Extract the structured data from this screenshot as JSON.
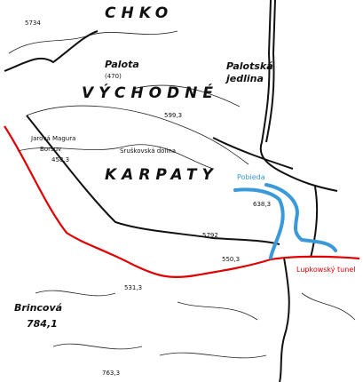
{
  "map": {
    "labels": {
      "chko": "CHKO",
      "vychodne": "VÝCHODNÉ",
      "karpaty": "KARPATY",
      "palota": "Palota",
      "palota_height": "(470)",
      "palotska": "Palotská",
      "jedlina": "jedlina",
      "pobieda": "Pobieda",
      "tunel": "Lupkowský tunel",
      "brincova": "Brincová",
      "brincova_height": "784,1",
      "h5734": "5734",
      "h5993": "599,3",
      "h4583": "458,3",
      "h6383": "638,3",
      "h5792": "5792",
      "h5313": "531,3",
      "h5503": "550,3",
      "h7633": "763,3",
      "magura": "Jarová Magura",
      "dolina": "Sruškovská dolina",
      "borsuv": "Borsuv"
    }
  }
}
